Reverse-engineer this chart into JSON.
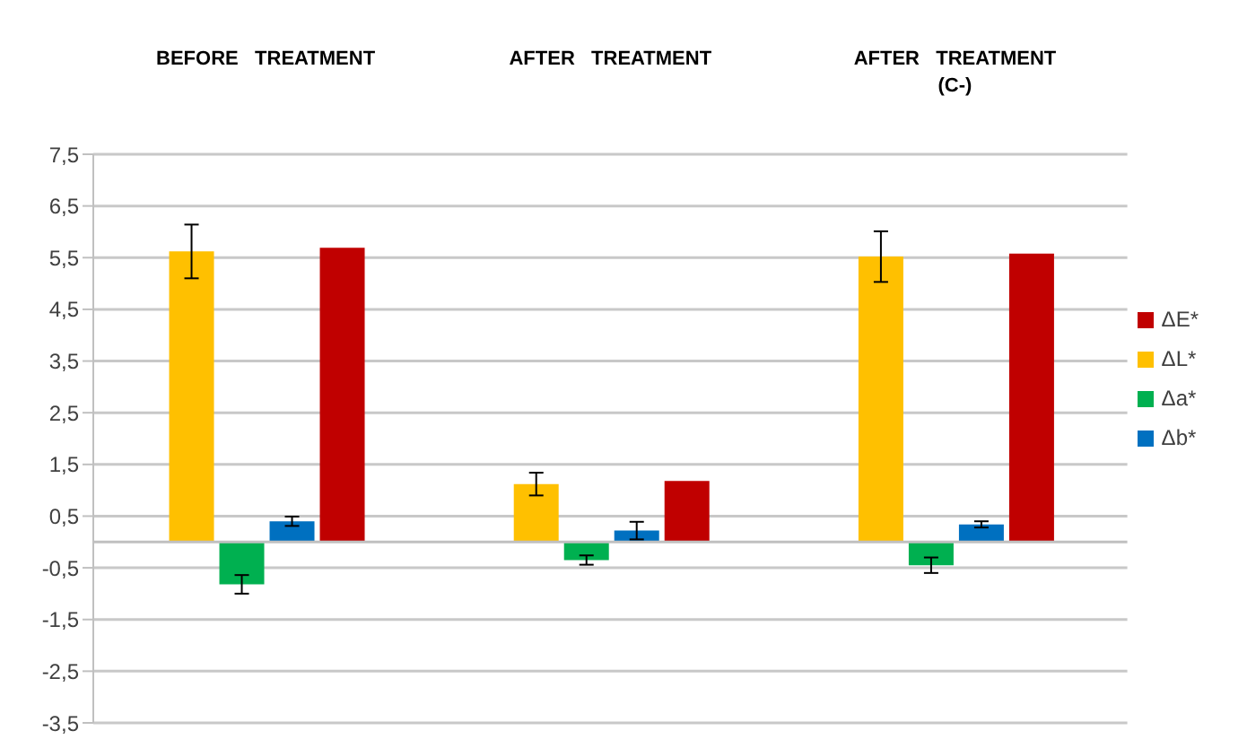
{
  "chart_data": {
    "type": "bar",
    "categories": [
      "BEFORE   TREATMENT",
      "AFTER   TREATMENT",
      "AFTER   TREATMENT\n(C-)"
    ],
    "series": [
      {
        "name": "ΔL*",
        "color": "#ffc000",
        "values": [
          5.62,
          1.12,
          5.52
        ],
        "errors": [
          0.52,
          0.22,
          0.49
        ]
      },
      {
        "name": "Δa*",
        "color": "#00b050",
        "values": [
          -0.82,
          -0.35,
          -0.45
        ],
        "errors": [
          0.18,
          0.09,
          0.15
        ]
      },
      {
        "name": "Δb*",
        "color": "#0070c0",
        "values": [
          0.4,
          0.22,
          0.34
        ],
        "errors": [
          0.09,
          0.17,
          0.06
        ]
      },
      {
        "name": "ΔE*",
        "color": "#c00000",
        "values": [
          5.69,
          1.18,
          5.58
        ]
      }
    ],
    "ylim": [
      -3.5,
      7.5
    ],
    "yticks": [
      {
        "value": -3.5,
        "label": "-3,5"
      },
      {
        "value": -2.5,
        "label": "-2,5"
      },
      {
        "value": -1.5,
        "label": "-1,5"
      },
      {
        "value": -0.5,
        "label": "-0,5"
      },
      {
        "value": 0.5,
        "label": "0,5"
      },
      {
        "value": 1.5,
        "label": "1,5"
      },
      {
        "value": 2.5,
        "label": "2,5"
      },
      {
        "value": 3.5,
        "label": "3,5"
      },
      {
        "value": 4.5,
        "label": "4,5"
      },
      {
        "value": 5.5,
        "label": "5,5"
      },
      {
        "value": 6.5,
        "label": "6,5"
      },
      {
        "value": 7.5,
        "label": "7,5"
      }
    ],
    "grid": "y",
    "legend": "right"
  }
}
